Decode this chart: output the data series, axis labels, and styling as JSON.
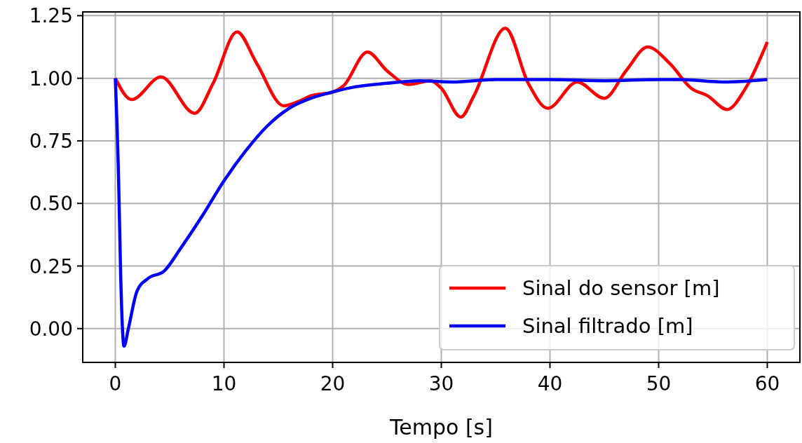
{
  "chart_data": {
    "type": "line",
    "xlabel": "Tempo [s]",
    "xlim": [
      -3,
      63
    ],
    "xticks": [
      0,
      10,
      20,
      30,
      40,
      50,
      60
    ],
    "ylim": [
      -0.135,
      1.265
    ],
    "yticks": [
      {
        "value": 0,
        "label": "0.00"
      },
      {
        "value": 0.25,
        "label": "0.25"
      },
      {
        "value": 0.5,
        "label": "0.50"
      },
      {
        "value": 0.75,
        "label": "0.75"
      },
      {
        "value": 1,
        "label": "1.00"
      },
      {
        "value": 1.25,
        "label": "1.25"
      }
    ],
    "grid": true,
    "legend": "bottom right",
    "series": [
      {
        "name": "Sinal do sensor [m]",
        "color": "#ff0000",
        "x": [
          0,
          1.5,
          4.2,
          7.3,
          9,
          11.2,
          13,
          15.5,
          17,
          18,
          20,
          21,
          23.2,
          25,
          27,
          29,
          30,
          31.8,
          33,
          35.9,
          38,
          39.8,
          42.5,
          45,
          47,
          49,
          51,
          53,
          54.5,
          56.3,
          58,
          60
        ],
        "values": [
          1.0,
          0.915,
          1.005,
          0.86,
          0.98,
          1.185,
          1.06,
          0.89,
          0.91,
          0.93,
          0.945,
          0.97,
          1.105,
          1.03,
          0.975,
          0.99,
          0.96,
          0.845,
          0.93,
          1.2,
          0.98,
          0.88,
          0.985,
          0.92,
          1.03,
          1.125,
          1.06,
          0.96,
          0.93,
          0.875,
          0.96,
          1.145
        ]
      },
      {
        "name": "Sinal filtrado [m]",
        "color": "#0000ff",
        "x": [
          0,
          0.3,
          0.5,
          0.8,
          1.2,
          2,
          3,
          4.5,
          6,
          8,
          10,
          12,
          14,
          16,
          18,
          20,
          22,
          25,
          28,
          31,
          35,
          40,
          45,
          50,
          52,
          56,
          60
        ],
        "values": [
          1.0,
          0.6,
          0.2,
          -0.07,
          0.0,
          0.15,
          0.2,
          0.23,
          0.32,
          0.45,
          0.59,
          0.71,
          0.81,
          0.88,
          0.92,
          0.945,
          0.965,
          0.98,
          0.99,
          0.985,
          0.995,
          0.995,
          0.99,
          0.995,
          0.995,
          0.985,
          0.995
        ]
      }
    ]
  }
}
